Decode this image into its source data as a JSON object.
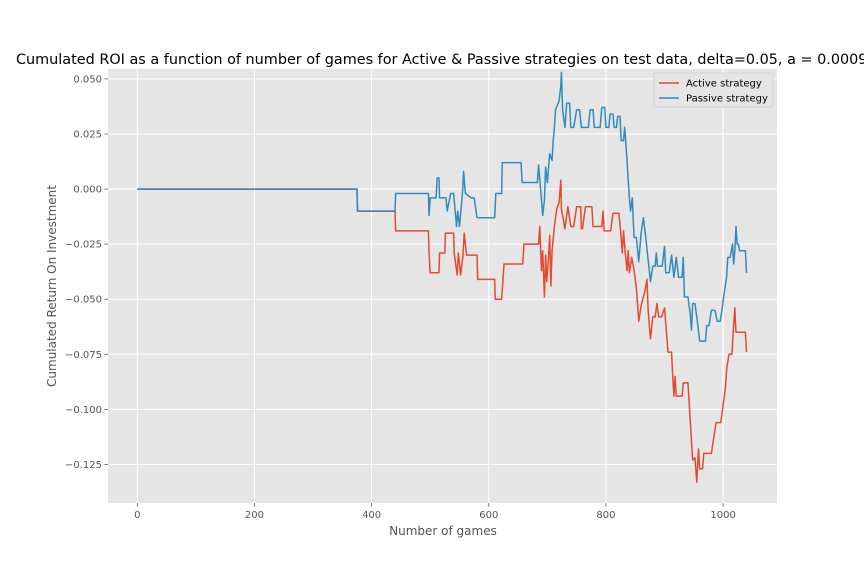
{
  "chart_data": {
    "type": "line",
    "title": "Cumulated ROI as a function of number of games for Active & Passive strategies on test data, delta=0.05, a = 0.0009",
    "xlabel": "Number of games",
    "ylabel": "Cumulated Return On Investment",
    "xlim": [
      -50,
      1092
    ],
    "ylim": [
      -0.1425,
      0.0545
    ],
    "xticks": [
      0,
      200,
      400,
      600,
      800,
      1000
    ],
    "xtick_labels": [
      "0",
      "200",
      "400",
      "600",
      "800",
      "1000"
    ],
    "yticks": [
      -0.125,
      -0.1,
      -0.075,
      -0.05,
      -0.025,
      0.0,
      0.025,
      0.05
    ],
    "ytick_labels": [
      "−0.125",
      "−0.100",
      "−0.075",
      "−0.050",
      "−0.025",
      "0.000",
      "0.025",
      "0.050"
    ],
    "grid": true,
    "legend_position": "top-right",
    "series": [
      {
        "name": "Active strategy",
        "color": "#E24A33",
        "points": [
          [
            0,
            0
          ],
          [
            375,
            0
          ],
          [
            376,
            -0.01
          ],
          [
            440,
            -0.01
          ],
          [
            441,
            -0.019
          ],
          [
            497,
            -0.019
          ],
          [
            498,
            -0.029
          ],
          [
            500,
            -0.038
          ],
          [
            515,
            -0.038
          ],
          [
            516,
            -0.029
          ],
          [
            525,
            -0.029
          ],
          [
            526,
            -0.02
          ],
          [
            540,
            -0.02
          ],
          [
            541,
            -0.029
          ],
          [
            546,
            -0.039
          ],
          [
            548,
            -0.029
          ],
          [
            552,
            -0.039
          ],
          [
            556,
            -0.03
          ],
          [
            558,
            -0.02
          ],
          [
            562,
            -0.03
          ],
          [
            570,
            -0.03
          ],
          [
            580,
            -0.03
          ],
          [
            581,
            -0.041
          ],
          [
            610,
            -0.041
          ],
          [
            611,
            -0.05
          ],
          [
            622,
            -0.05
          ],
          [
            624,
            -0.042
          ],
          [
            626,
            -0.034
          ],
          [
            658,
            -0.034
          ],
          [
            660,
            -0.025
          ],
          [
            685,
            -0.025
          ],
          [
            687,
            -0.017
          ],
          [
            690,
            -0.037
          ],
          [
            692,
            -0.028
          ],
          [
            695,
            -0.049
          ],
          [
            697,
            -0.03
          ],
          [
            699,
            -0.042
          ],
          [
            702,
            -0.031
          ],
          [
            704,
            -0.021
          ],
          [
            706,
            -0.044
          ],
          [
            708,
            -0.028
          ],
          [
            712,
            -0.017
          ],
          [
            716,
            -0.009
          ],
          [
            720,
            -0.006
          ],
          [
            723,
            0.004
          ],
          [
            724,
            -0.009
          ],
          [
            730,
            -0.018
          ],
          [
            735,
            -0.008
          ],
          [
            740,
            -0.017
          ],
          [
            745,
            -0.017
          ],
          [
            750,
            -0.008
          ],
          [
            757,
            -0.008
          ],
          [
            758,
            -0.018
          ],
          [
            760,
            -0.018
          ],
          [
            765,
            -0.008
          ],
          [
            776,
            -0.008
          ],
          [
            778,
            -0.017
          ],
          [
            793,
            -0.017
          ],
          [
            795,
            -0.01
          ],
          [
            797,
            -0.019
          ],
          [
            808,
            -0.019
          ],
          [
            812,
            -0.011
          ],
          [
            822,
            -0.011
          ],
          [
            825,
            -0.019
          ],
          [
            828,
            -0.029
          ],
          [
            830,
            -0.019
          ],
          [
            833,
            -0.029
          ],
          [
            836,
            -0.037
          ],
          [
            838,
            -0.028
          ],
          [
            840,
            -0.038
          ],
          [
            844,
            -0.031
          ],
          [
            848,
            -0.037
          ],
          [
            852,
            -0.045
          ],
          [
            856,
            -0.06
          ],
          [
            860,
            -0.053
          ],
          [
            866,
            -0.047
          ],
          [
            870,
            -0.041
          ],
          [
            872,
            -0.055
          ],
          [
            876,
            -0.068
          ],
          [
            880,
            -0.058
          ],
          [
            884,
            -0.058
          ],
          [
            887,
            -0.052
          ],
          [
            890,
            -0.058
          ],
          [
            895,
            -0.058
          ],
          [
            900,
            -0.054
          ],
          [
            903,
            -0.064
          ],
          [
            906,
            -0.074
          ],
          [
            912,
            -0.074
          ],
          [
            914,
            -0.085
          ],
          [
            916,
            -0.094
          ],
          [
            918,
            -0.085
          ],
          [
            920,
            -0.094
          ],
          [
            930,
            -0.094
          ],
          [
            932,
            -0.088
          ],
          [
            940,
            -0.088
          ],
          [
            945,
            -0.11
          ],
          [
            948,
            -0.123
          ],
          [
            952,
            -0.122
          ],
          [
            955,
            -0.133
          ],
          [
            958,
            -0.118
          ],
          [
            960,
            -0.127
          ],
          [
            965,
            -0.127
          ],
          [
            967,
            -0.12
          ],
          [
            980,
            -0.12
          ],
          [
            984,
            -0.113
          ],
          [
            988,
            -0.106
          ],
          [
            996,
            -0.106
          ],
          [
            1000,
            -0.098
          ],
          [
            1004,
            -0.09
          ],
          [
            1006,
            -0.082
          ],
          [
            1010,
            -0.075
          ],
          [
            1015,
            -0.075
          ],
          [
            1018,
            -0.062
          ],
          [
            1020,
            -0.054
          ],
          [
            1022,
            -0.065
          ],
          [
            1030,
            -0.065
          ],
          [
            1038,
            -0.065
          ],
          [
            1040,
            -0.074
          ]
        ]
      },
      {
        "name": "Passive strategy",
        "color": "#348ABD",
        "points": [
          [
            0,
            0
          ],
          [
            375,
            0
          ],
          [
            376,
            -0.01
          ],
          [
            440,
            -0.01
          ],
          [
            441,
            -0.002
          ],
          [
            497,
            -0.002
          ],
          [
            498,
            -0.012
          ],
          [
            500,
            -0.004
          ],
          [
            510,
            -0.004
          ],
          [
            512,
            0.005
          ],
          [
            515,
            0.005
          ],
          [
            516,
            -0.004
          ],
          [
            527,
            -0.004
          ],
          [
            529,
            -0.01
          ],
          [
            535,
            -0.002
          ],
          [
            540,
            -0.002
          ],
          [
            542,
            -0.008
          ],
          [
            545,
            -0.017
          ],
          [
            547,
            -0.01
          ],
          [
            550,
            -0.017
          ],
          [
            555,
            -0.002
          ],
          [
            557,
            0.008
          ],
          [
            560,
            -0.002
          ],
          [
            570,
            -0.004
          ],
          [
            575,
            -0.004
          ],
          [
            580,
            -0.013
          ],
          [
            610,
            -0.013
          ],
          [
            612,
            -0.002
          ],
          [
            622,
            -0.002
          ],
          [
            623,
            0.012
          ],
          [
            655,
            0.012
          ],
          [
            657,
            0.003
          ],
          [
            683,
            0.003
          ],
          [
            685,
            0.011
          ],
          [
            690,
            -0.005
          ],
          [
            692,
            -0.012
          ],
          [
            695,
            -0.005
          ],
          [
            697,
            0.01
          ],
          [
            700,
            0.003
          ],
          [
            704,
            0.016
          ],
          [
            708,
            0.013
          ],
          [
            710,
            0.022
          ],
          [
            712,
            0.028
          ],
          [
            714,
            0.036
          ],
          [
            720,
            0.04
          ],
          [
            723,
            0.047
          ],
          [
            724,
            0.053
          ],
          [
            726,
            0.036
          ],
          [
            730,
            0.028
          ],
          [
            733,
            0.039
          ],
          [
            738,
            0.039
          ],
          [
            740,
            0.028
          ],
          [
            745,
            0.028
          ],
          [
            750,
            0.036
          ],
          [
            755,
            0.036
          ],
          [
            758,
            0.028
          ],
          [
            770,
            0.028
          ],
          [
            773,
            0.036
          ],
          [
            778,
            0.036
          ],
          [
            780,
            0.028
          ],
          [
            790,
            0.028
          ],
          [
            793,
            0.037
          ],
          [
            798,
            0.037
          ],
          [
            800,
            0.028
          ],
          [
            805,
            0.028
          ],
          [
            807,
            0.034
          ],
          [
            812,
            0.034
          ],
          [
            814,
            0.028
          ],
          [
            818,
            0.028
          ],
          [
            820,
            0.033
          ],
          [
            824,
            0.033
          ],
          [
            826,
            0.022
          ],
          [
            830,
            0.022
          ],
          [
            832,
            0.028
          ],
          [
            836,
            0.013
          ],
          [
            838,
            0.004
          ],
          [
            840,
            -0.004
          ],
          [
            842,
            -0.01
          ],
          [
            845,
            -0.004
          ],
          [
            848,
            -0.022
          ],
          [
            852,
            -0.022
          ],
          [
            856,
            -0.033
          ],
          [
            860,
            -0.02
          ],
          [
            864,
            -0.013
          ],
          [
            868,
            -0.022
          ],
          [
            872,
            -0.032
          ],
          [
            876,
            -0.042
          ],
          [
            880,
            -0.035
          ],
          [
            884,
            -0.035
          ],
          [
            886,
            -0.029
          ],
          [
            888,
            -0.035
          ],
          [
            896,
            -0.035
          ],
          [
            900,
            -0.026
          ],
          [
            902,
            -0.038
          ],
          [
            908,
            -0.038
          ],
          [
            912,
            -0.03
          ],
          [
            916,
            -0.04
          ],
          [
            920,
            -0.031
          ],
          [
            924,
            -0.04
          ],
          [
            930,
            -0.04
          ],
          [
            932,
            -0.031
          ],
          [
            934,
            -0.049
          ],
          [
            940,
            -0.049
          ],
          [
            944,
            -0.057
          ],
          [
            946,
            -0.064
          ],
          [
            948,
            -0.052
          ],
          [
            952,
            -0.052
          ],
          [
            956,
            -0.06
          ],
          [
            960,
            -0.069
          ],
          [
            966,
            -0.069
          ],
          [
            970,
            -0.069
          ],
          [
            972,
            -0.062
          ],
          [
            976,
            -0.062
          ],
          [
            980,
            -0.055
          ],
          [
            986,
            -0.055
          ],
          [
            990,
            -0.06
          ],
          [
            995,
            -0.06
          ],
          [
            998,
            -0.055
          ],
          [
            1002,
            -0.047
          ],
          [
            1006,
            -0.04
          ],
          [
            1008,
            -0.031
          ],
          [
            1012,
            -0.031
          ],
          [
            1016,
            -0.025
          ],
          [
            1018,
            -0.034
          ],
          [
            1020,
            -0.028
          ],
          [
            1022,
            -0.017
          ],
          [
            1024,
            -0.025
          ],
          [
            1026,
            -0.025
          ],
          [
            1028,
            -0.028
          ],
          [
            1038,
            -0.028
          ],
          [
            1040,
            -0.038
          ]
        ]
      }
    ]
  }
}
